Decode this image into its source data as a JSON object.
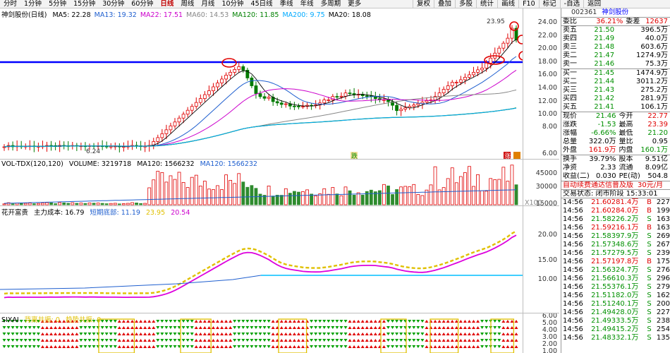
{
  "toolbar": {
    "left": [
      "分时",
      "1分钟",
      "5分钟",
      "15分钟",
      "30分钟",
      "60分钟",
      "日线",
      "周线",
      "月线",
      "10分钟",
      "45日线",
      "季线",
      "年线",
      "多周期",
      "更多"
    ],
    "selected": "日线",
    "right": [
      "复权",
      "叠加",
      "多股",
      "统计",
      "画线",
      "F10",
      "标记",
      "-自选",
      "返回"
    ]
  },
  "main": {
    "title": "神剑股份(日线)",
    "ma": [
      {
        "label": "MA5: 22.28",
        "color": "#000000"
      },
      {
        "label": "MA13: 19.32",
        "color": "#1f5fcf"
      },
      {
        "label": "MA22: 17.51",
        "color": "#cc00cc"
      },
      {
        "label": "MA60: 14.53",
        "color": "#888888"
      },
      {
        "label": "MA120: 11.85",
        "color": "#008000"
      },
      {
        "label": "MA200: 9.75",
        "color": "#00aaff"
      },
      {
        "label": "MA20: 18.08",
        "color": "#000000"
      }
    ],
    "price_ticks": [
      "24.00",
      "22.00",
      "20.00",
      "18.00",
      "16.00",
      "14.00",
      "12.00",
      "10.00",
      "8.00",
      "6.00"
    ],
    "high_label": "23.95",
    "low_label": "6.24",
    "marker_label": "跌",
    "marker2": "涨"
  },
  "vol": {
    "title": "VOL-TDX(120,120)",
    "volume": "VOLUME: 3219718",
    "ma": "MA120: 1566232",
    "ma2": "MA120: 1566232",
    "ticks": [
      "45000",
      "30000",
      "15000"
    ],
    "unit": "X100"
  },
  "ind": {
    "title": "花开富贵",
    "items": [
      "主力成本: 16.79",
      "短期底部: 11.19",
      "23.95",
      "20.54"
    ],
    "ticks": [
      "20.00",
      "15.00",
      "10.00"
    ]
  },
  "six": {
    "title": "SIXAI",
    "items": [
      "背离共振: 0",
      "趋势共振: 0"
    ],
    "ticks": [
      "6.00",
      "5.00",
      "4.00",
      "3.00",
      "2.00",
      "1.00"
    ]
  },
  "quote": {
    "code": "002361",
    "name": "神剑股份",
    "weibi": {
      "l1": "委比",
      "v1": "36.21%",
      "l2": "委差",
      "v2": "12637"
    },
    "sell": [
      {
        "l": "卖五",
        "p": "21.50",
        "v": "396.5万"
      },
      {
        "l": "卖四",
        "p": "21.49",
        "v": "40.0万"
      },
      {
        "l": "卖三",
        "p": "21.48",
        "v": "603.6万"
      },
      {
        "l": "卖二",
        "p": "21.47",
        "v": "1274.9万"
      },
      {
        "l": "卖一",
        "p": "21.46",
        "v": "75.3万"
      }
    ],
    "buy": [
      {
        "l": "买一",
        "p": "21.45",
        "v": "1474.9万"
      },
      {
        "l": "买二",
        "p": "21.44",
        "v": "3011.2万"
      },
      {
        "l": "买三",
        "p": "21.43",
        "v": "275.2万"
      },
      {
        "l": "买四",
        "p": "21.42",
        "v": "281.9万"
      },
      {
        "l": "买五",
        "p": "21.41",
        "v": "106.1万"
      }
    ],
    "stats": [
      {
        "l1": "现价",
        "v1": "21.46",
        "l2": "今开",
        "v2": "22.77"
      },
      {
        "l1": "涨跌",
        "v1": "-1.53",
        "l2": "最高",
        "v2": "23.39"
      },
      {
        "l1": "涨幅",
        "v1": "-6.66%",
        "l2": "最低",
        "v2": "21.20"
      },
      {
        "l1": "总量",
        "v1": "322.0万",
        "l2": "量比",
        "v2": "0.95"
      },
      {
        "l1": "外盘",
        "v1": "161.9万",
        "l2": "内盘",
        "v2": "160.1万"
      }
    ],
    "stats2": [
      {
        "l1": "换手",
        "v1": "39.79%",
        "l2": "股本",
        "v2": "9.51亿"
      },
      {
        "l1": "净资",
        "v1": "2.33",
        "l2": "流通",
        "v2": "8.09亿"
      },
      {
        "l1": "收益(二)",
        "v1": "0.030",
        "l2": "PE(动)",
        "v2": "504.8"
      }
    ],
    "ad": "自动续费通达信普及版",
    "ad_price": "30元/月",
    "trade_state": "交易状态: 闭市阶段 15:33:01"
  },
  "ticks": [
    {
      "t": "14:56",
      "p": "21.60",
      "v": "281.4万",
      "d": "B",
      "n": "227"
    },
    {
      "t": "14:56",
      "p": "21.60",
      "v": "284.0万",
      "d": "B",
      "n": "199"
    },
    {
      "t": "14:56",
      "p": "21.58",
      "v": "226.2万",
      "d": "S",
      "n": "163"
    },
    {
      "t": "14:56",
      "p": "21.59",
      "v": "216.1万",
      "d": "B",
      "n": "163"
    },
    {
      "t": "14:56",
      "p": "21.58",
      "v": "397.9万",
      "d": "S",
      "n": "269"
    },
    {
      "t": "14:56",
      "p": "21.57",
      "v": "348.6万",
      "d": "S",
      "n": "267"
    },
    {
      "t": "14:56",
      "p": "21.57",
      "v": "279.5万",
      "d": "S",
      "n": "239"
    },
    {
      "t": "14:56",
      "p": "21.57",
      "v": "197.8万",
      "d": "B",
      "n": "175"
    },
    {
      "t": "14:56",
      "p": "21.56",
      "v": "324.7万",
      "d": "S",
      "n": "276"
    },
    {
      "t": "14:56",
      "p": "21.56",
      "v": "610.3万",
      "d": "S",
      "n": "296"
    },
    {
      "t": "14:56",
      "p": "21.55",
      "v": "376.1万",
      "d": "S",
      "n": "279"
    },
    {
      "t": "14:56",
      "p": "21.51",
      "v": "182.0万",
      "d": "S",
      "n": "162"
    },
    {
      "t": "14:56",
      "p": "21.51",
      "v": "240.1万",
      "d": "S",
      "n": "200"
    },
    {
      "t": "14:56",
      "p": "21.49",
      "v": "428.0万",
      "d": "S",
      "n": "227"
    },
    {
      "t": "14:56",
      "p": "21.49",
      "v": "333.5万",
      "d": "S",
      "n": "238"
    },
    {
      "t": "14:56",
      "p": "21.49",
      "v": "415.2万",
      "d": "S",
      "n": "254"
    },
    {
      "t": "14:56",
      "p": "21.48",
      "v": "332.1万",
      "d": "S",
      "n": "135"
    }
  ],
  "colors": {
    "up": "#e00000",
    "down": "#007a00",
    "blueline": "#0000ff"
  }
}
